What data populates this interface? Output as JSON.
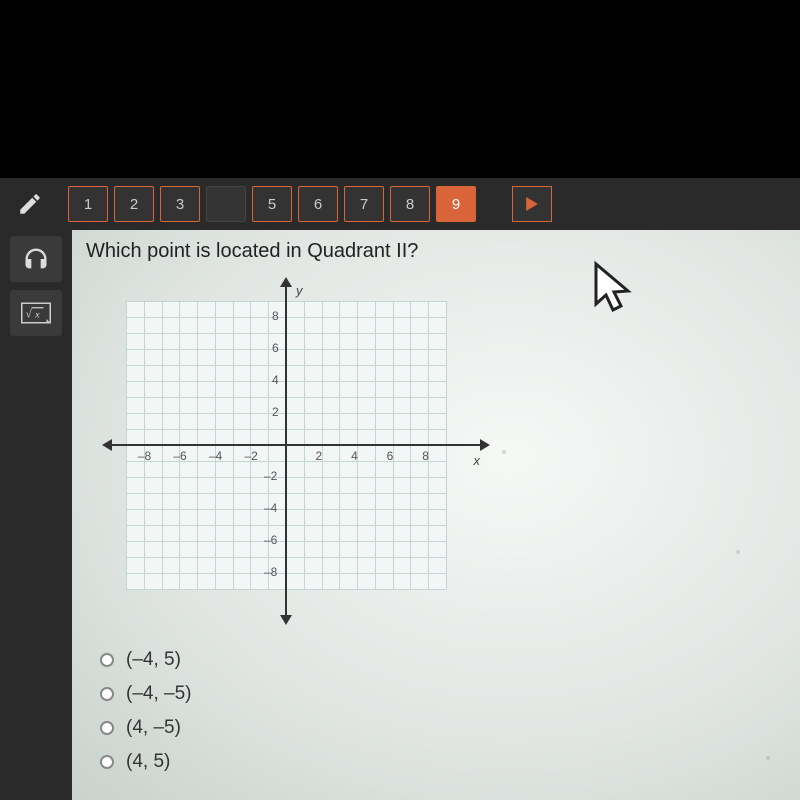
{
  "toolbar": {
    "questions": [
      {
        "n": "1",
        "state": ""
      },
      {
        "n": "2",
        "state": ""
      },
      {
        "n": "3",
        "state": ""
      },
      {
        "n": "",
        "state": "dim"
      },
      {
        "n": "5",
        "state": ""
      },
      {
        "n": "6",
        "state": ""
      },
      {
        "n": "7",
        "state": ""
      },
      {
        "n": "8",
        "state": ""
      },
      {
        "n": "9",
        "state": "active"
      }
    ]
  },
  "question": {
    "text": "Which point is located in Quadrant II?"
  },
  "graph": {
    "xlim": [
      -9,
      9
    ],
    "ylim": [
      -9,
      9
    ],
    "grid_step": 1,
    "label_step": 2,
    "y_label": "y",
    "x_label": "x",
    "x_ticks": [
      "-8",
      "-6",
      "-4",
      "-2",
      "2",
      "4",
      "6",
      "8"
    ],
    "y_ticks": [
      "8",
      "6",
      "4",
      "2",
      "-2",
      "-4",
      "-6",
      "-8"
    ],
    "grid_color": "#c2d6d6",
    "axis_color": "#333333",
    "bg_color": "#f2f6f4"
  },
  "answers": [
    {
      "text": "(–4, 5)"
    },
    {
      "text": "(–4, –5)"
    },
    {
      "text": "(4, –5)"
    },
    {
      "text": "(4, 5)"
    }
  ]
}
